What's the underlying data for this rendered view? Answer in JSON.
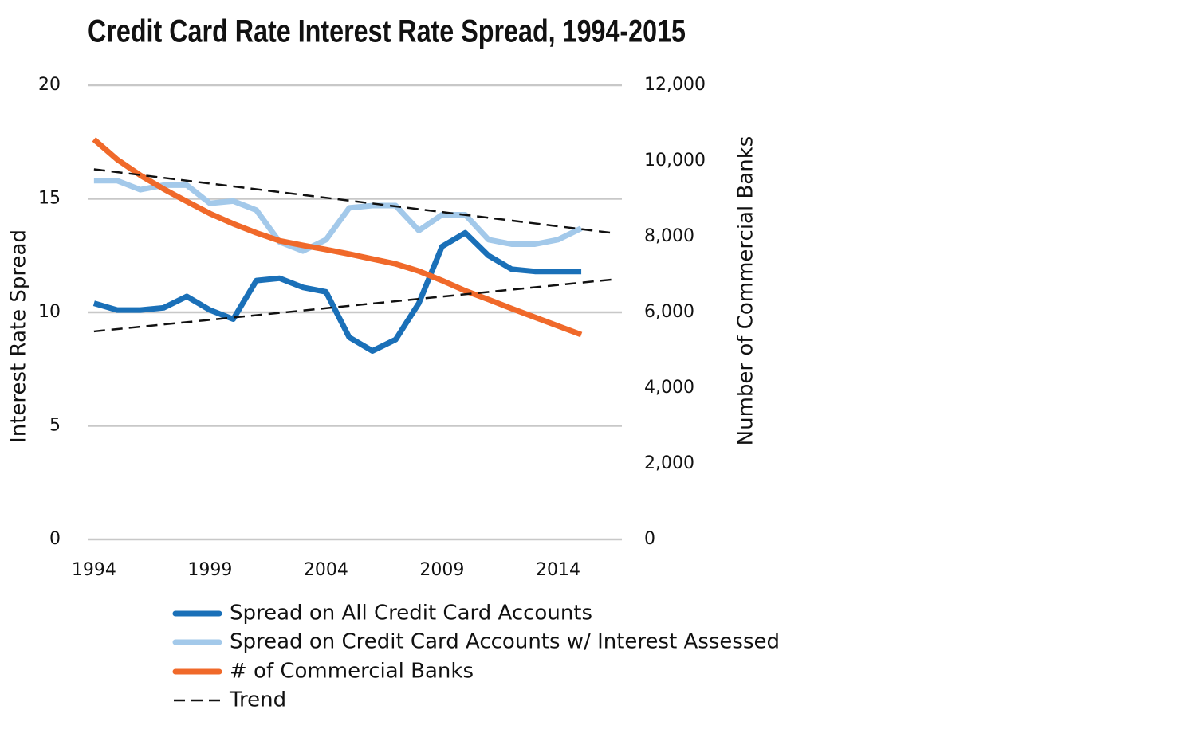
{
  "chart_data": {
    "type": "line",
    "title": "Credit Card Rate Interest Rate Spread, 1994-2015",
    "y_label": "Interest Rate Spread",
    "y2_label": "Number of Commercial Banks",
    "x": [
      1994,
      1995,
      1996,
      1997,
      1998,
      1999,
      2000,
      2001,
      2002,
      2003,
      2004,
      2005,
      2006,
      2007,
      2008,
      2009,
      2010,
      2011,
      2012,
      2013,
      2014,
      2015
    ],
    "xlim": [
      1993.73,
      2016.75
    ],
    "xticks": [
      1994,
      1999,
      2004,
      2009,
      2014
    ],
    "ylim": [
      0,
      20
    ],
    "yticks": [
      0,
      5,
      10,
      15,
      20
    ],
    "y2lim": [
      0,
      12000
    ],
    "y2ticks": [
      0,
      {
        "value": 2000,
        "label": "2,000"
      },
      {
        "value": 4000,
        "label": "4,000"
      },
      {
        "value": 6000,
        "label": "6,000"
      },
      {
        "value": 8000,
        "label": "8,000"
      },
      {
        "value": 10000,
        "label": "10,000"
      },
      {
        "value": 12000,
        "label": "12,000"
      }
    ],
    "grid": true,
    "series": [
      {
        "name": "Spread on All Credit Card Accounts",
        "color": "#1a70b8",
        "values": [
          10.4,
          10.1,
          10.1,
          10.2,
          10.7,
          10.1,
          9.7,
          11.4,
          11.5,
          11.1,
          10.9,
          8.9,
          8.3,
          8.8,
          10.4,
          12.9,
          13.5,
          12.5,
          11.9,
          11.8,
          11.8,
          11.8
        ]
      },
      {
        "name": "Spread on Credit Card Accounts w/ Interest Assessed",
        "color": "#a3c9ea",
        "values": [
          15.8,
          15.8,
          15.4,
          15.6,
          15.6,
          14.8,
          14.9,
          14.5,
          13.1,
          12.7,
          13.2,
          14.6,
          14.7,
          14.7,
          13.6,
          14.3,
          14.3,
          13.2,
          13.0,
          13.0,
          13.2,
          13.7
        ]
      },
      {
        "name": "# of Commercial Banks",
        "color": "#f0692a",
        "axis": "y2",
        "values": [
          10570,
          10040,
          9620,
          9260,
          8930,
          8610,
          8340,
          8100,
          7890,
          7770,
          7660,
          7540,
          7410,
          7280,
          7090,
          6840,
          6570,
          6340,
          6100,
          5870,
          5640,
          5410
        ]
      }
    ],
    "trend": {
      "name": "Trend",
      "color": "#111111",
      "lines": [
        {
          "x": [
            1994,
            2016.3
          ],
          "values": [
            16.3,
            13.5
          ]
        },
        {
          "x": [
            1994,
            2016.3
          ],
          "values": [
            9.16,
            11.44
          ]
        }
      ]
    }
  }
}
